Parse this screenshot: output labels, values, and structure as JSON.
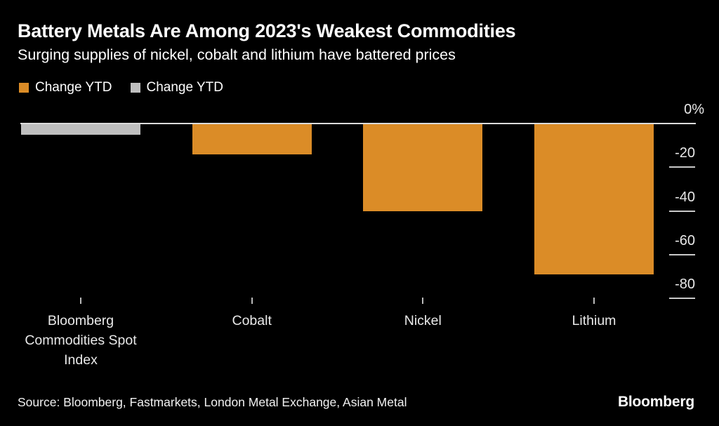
{
  "header": {
    "title": "Battery Metals Are Among 2023's Weakest Commodities",
    "subtitle": "Surging supplies of nickel, cobalt and lithium have battered prices"
  },
  "legend": {
    "items": [
      {
        "label": "Change YTD",
        "color": "#DB8C27",
        "swatch": "orange-square"
      },
      {
        "label": "Change YTD",
        "color": "#BFBFBF",
        "swatch": "gray-square"
      }
    ]
  },
  "chart_data": {
    "type": "bar",
    "title": "Battery Metals Are Among 2023's Weakest Commodities",
    "subtitle": "Surging supplies of nickel, cobalt and lithium have battered prices",
    "series_name": "Change YTD",
    "unit": "%",
    "categories": [
      "Bloomberg Commodities Spot Index",
      "Cobalt",
      "Nickel",
      "Lithium"
    ],
    "values": [
      -5,
      -14,
      -40,
      -69
    ],
    "bar_colors": [
      "#BFBFBF",
      "#DB8C27",
      "#DB8C27",
      "#DB8C27"
    ],
    "y_ticks": [
      0,
      -20,
      -40,
      -60,
      -80
    ],
    "y_tick_labels": [
      "0%",
      "-20",
      "-40",
      "-60",
      "-80"
    ],
    "ylim": [
      -85,
      0
    ],
    "grid": false,
    "legend_position": "top-left",
    "orientation": "vertical-negative"
  },
  "footer": {
    "source": "Source: Bloomberg, Fastmarkets, London Metal Exchange, Asian Metal",
    "logo": "Bloomberg"
  },
  "colors": {
    "background": "#000000",
    "text": "#FFFFFF",
    "axis_line": "#DCDCDC",
    "tick_line": "#C9C9C9",
    "orange": "#DB8C27",
    "gray": "#BFBFBF"
  }
}
